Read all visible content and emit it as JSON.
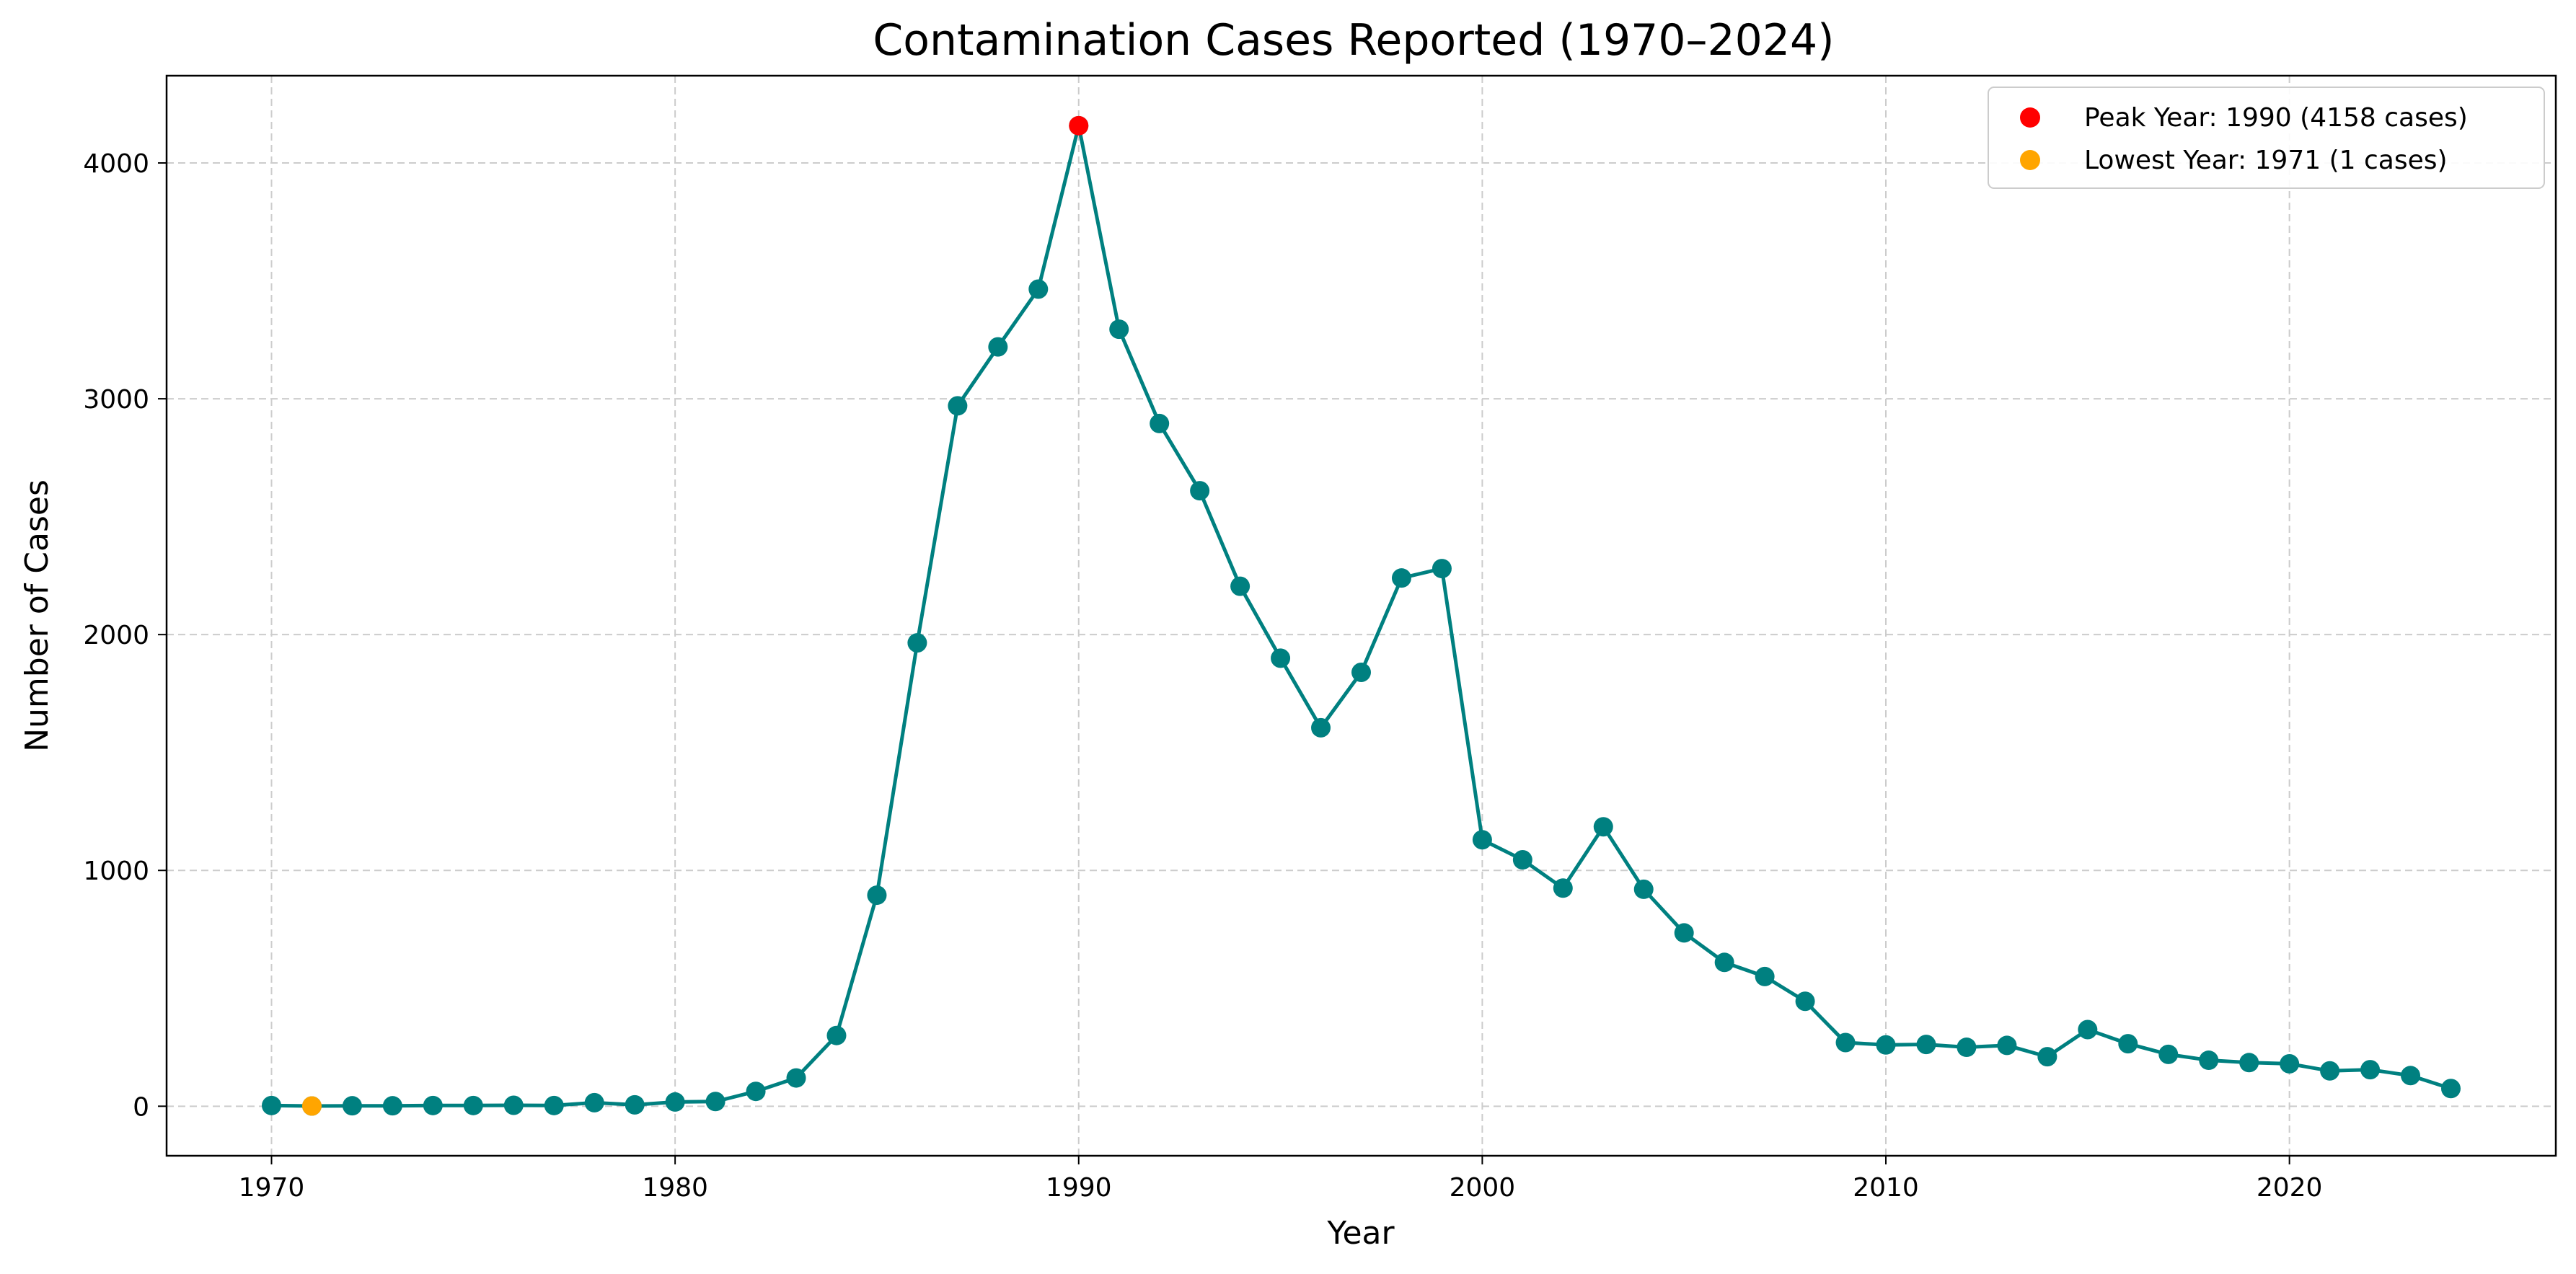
{
  "chart_data": {
    "type": "line",
    "title": "Contamination Cases Reported (1970–2024)",
    "xlabel": "Year",
    "ylabel": "Number of Cases",
    "xlim": [
      1967.4,
      2026.6
    ],
    "ylim": [
      -210,
      4370
    ],
    "xticks": [
      1970,
      1980,
      1990,
      2000,
      2010,
      2020
    ],
    "yticks": [
      0,
      1000,
      2000,
      3000,
      4000
    ],
    "grid": true,
    "legend_position": "top-right",
    "series": [
      {
        "color": "#008080",
        "x": [
          1970,
          1971,
          1972,
          1973,
          1974,
          1975,
          1976,
          1977,
          1978,
          1979,
          1980,
          1981,
          1982,
          1983,
          1984,
          1985,
          1986,
          1987,
          1988,
          1989,
          1990,
          1991,
          1992,
          1993,
          1994,
          1995,
          1996,
          1997,
          1998,
          1999,
          2000,
          2001,
          2002,
          2003,
          2004,
          2005,
          2006,
          2007,
          2008,
          2009,
          2010,
          2011,
          2012,
          2013,
          2014,
          2015,
          2016,
          2017,
          2018,
          2019,
          2020,
          2021,
          2022,
          2023,
          2024
        ],
        "y": [
          3,
          1,
          2,
          2,
          3,
          3,
          4,
          3,
          15,
          6,
          18,
          20,
          63,
          120,
          300,
          895,
          1965,
          2970,
          3220,
          3465,
          4158,
          3295,
          2895,
          2610,
          2205,
          1900,
          1605,
          1840,
          2240,
          2280,
          1130,
          1045,
          925,
          1185,
          920,
          735,
          610,
          550,
          445,
          270,
          260,
          262,
          250,
          258,
          210,
          325,
          265,
          220,
          195,
          185,
          180,
          150,
          155,
          130,
          75
        ]
      }
    ],
    "highlights": [
      {
        "label": "Peak Year: 1990 (4158 cases)",
        "x": 1990,
        "y": 4158,
        "color": "#ff0000"
      },
      {
        "label": "Lowest Year: 1971 (1 cases)",
        "x": 1971,
        "y": 1,
        "color": "#ffa500"
      }
    ]
  }
}
